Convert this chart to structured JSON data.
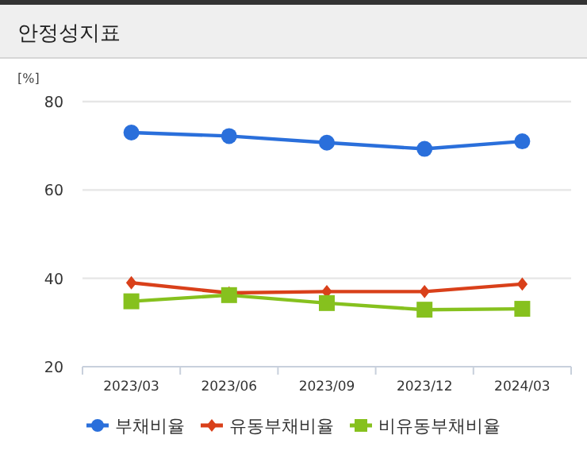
{
  "chart_data": {
    "type": "line",
    "title": "안정성지표",
    "ylabel": "[%]",
    "categories": [
      "2023/03",
      "2023/06",
      "2023/09",
      "2023/12",
      "2024/03"
    ],
    "series": [
      {
        "name": "부채비율",
        "color": "#2a6fdb",
        "marker": "circle",
        "values": [
          73.0,
          72.2,
          70.7,
          69.3,
          71.0
        ]
      },
      {
        "name": "유동부채비율",
        "color": "#d9401a",
        "marker": "diamond",
        "values": [
          39.0,
          36.7,
          37.0,
          37.0,
          38.7
        ]
      },
      {
        "name": "비유동부채비율",
        "color": "#86c11e",
        "marker": "square",
        "values": [
          34.8,
          36.2,
          34.4,
          32.9,
          33.1
        ]
      }
    ],
    "ylim": [
      20,
      80
    ],
    "yticks": [
      20,
      40,
      60,
      80
    ],
    "grid": "y",
    "legend": "bottom"
  }
}
